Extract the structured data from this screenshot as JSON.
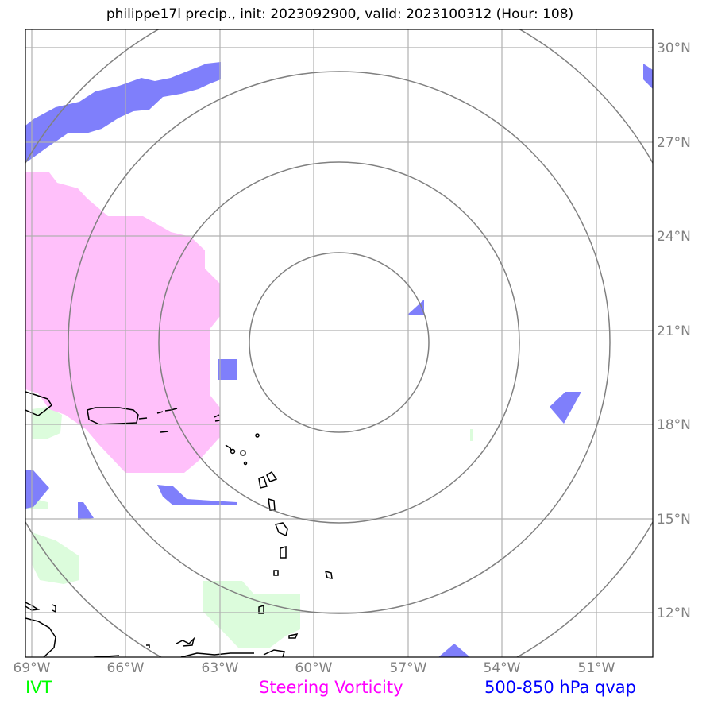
{
  "title": "philippe17l precip., init: 2023092900, valid: 2023100312 (Hour: 108)",
  "lon_ticks": [
    "69°W",
    "66°W",
    "63°W",
    "60°W",
    "57°W",
    "54°W",
    "51°W"
  ],
  "lat_ticks": [
    "30°N",
    "27°N",
    "24°N",
    "21°N",
    "18°N",
    "15°N",
    "12°N"
  ],
  "extent": {
    "lon_min": -69,
    "lon_max": -49,
    "lat_min": 10.6,
    "lat_max": 30.6
  },
  "storm_center": {
    "lon": -59.2,
    "lat": 20.7
  },
  "legend": [
    {
      "label": "IVT",
      "color": "#00ff00"
    },
    {
      "label": "Steering Vorticity",
      "color": "#ff00ff"
    },
    {
      "label": "500-850 hPa qvap",
      "color": "#0000ff"
    }
  ],
  "colors": {
    "ivt_fill": "#dcfcdc",
    "vorticity_fill": "#ffc0fa",
    "qvap_fill": "#7f7ffb",
    "grid": "#b0b0b0",
    "range_rings": "#808080",
    "coastline": "#000000"
  }
}
